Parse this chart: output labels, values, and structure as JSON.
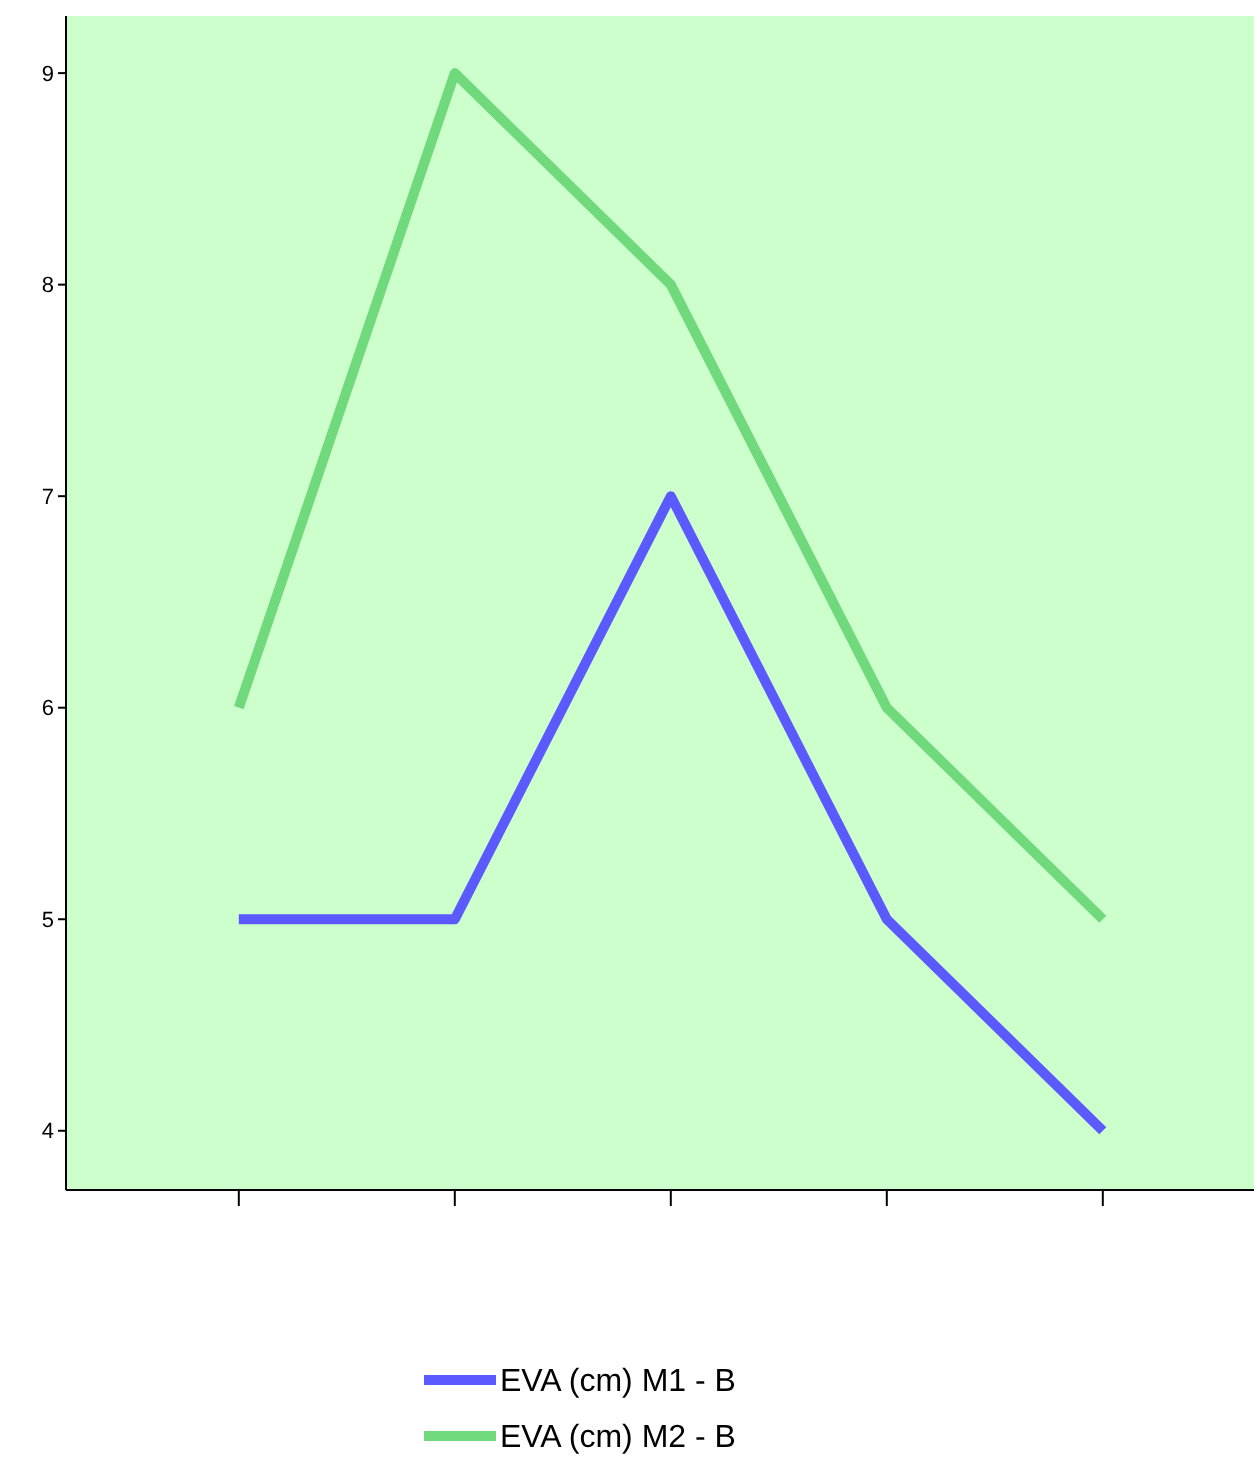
{
  "chart_data": {
    "type": "line",
    "categories": [
      null,
      null,
      null,
      null,
      null
    ],
    "series": [
      {
        "name": "EVA (cm) M1 - B",
        "color": "#5a5aff",
        "values": [
          5,
          5,
          7,
          5,
          4
        ]
      },
      {
        "name": "EVA (cm) M2 - B",
        "color": "#6fd97b",
        "values": [
          6,
          9,
          8,
          6,
          5
        ]
      }
    ],
    "ylim": [
      3.72,
      9.27
    ],
    "yticks": [
      4,
      5,
      6,
      7,
      8,
      9
    ],
    "grid": false,
    "legend": "bottom",
    "marker": "none",
    "line_style": "solid"
  }
}
